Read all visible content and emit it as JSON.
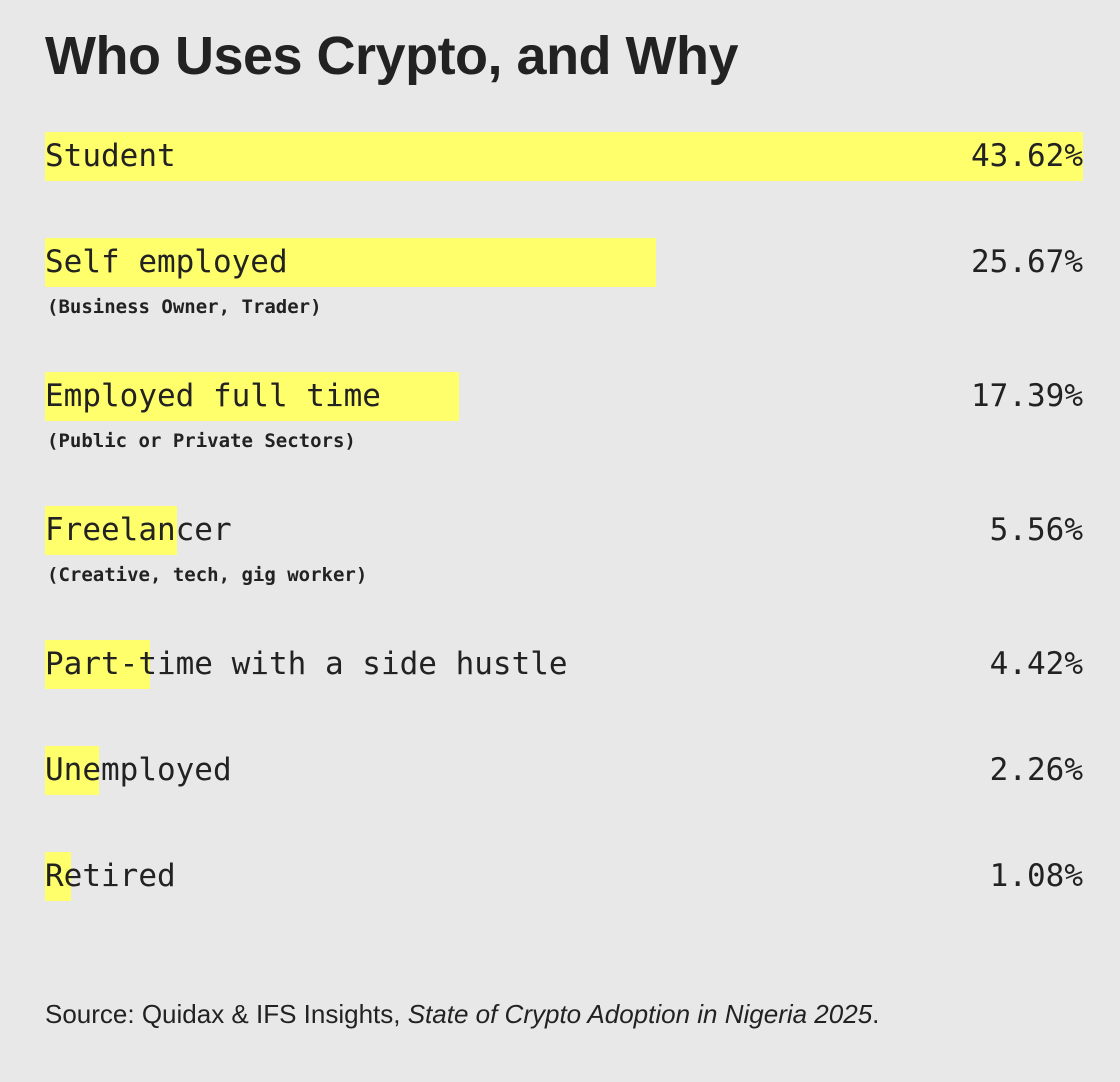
{
  "title": "Who Uses Crypto, and Why",
  "source": {
    "prefix": "Source: Quidax & IFS Insights, ",
    "italic": "State of Crypto Adoption in Nigeria 2025",
    "suffix": "."
  },
  "colors": {
    "background": "#e8e8e8",
    "bar": "#ffff6b",
    "text": "#222222"
  },
  "chart_data": {
    "type": "bar",
    "orientation": "horizontal",
    "title": "Who Uses Crypto, and Why",
    "categories": [
      "Student",
      "Self employed",
      "Employed full time",
      "Freelancer",
      "Part-time with a side hustle",
      "Unemployed",
      "Retired"
    ],
    "sublabels": [
      "",
      "(Business Owner, Trader)",
      "(Public or Private Sectors)",
      "(Creative, tech, gig worker)",
      "",
      "",
      ""
    ],
    "values": [
      43.62,
      25.67,
      17.39,
      5.56,
      4.42,
      2.26,
      1.08
    ],
    "value_labels": [
      "43.62%",
      "25.67%",
      "17.39%",
      "5.56%",
      "4.42%",
      "2.26%",
      "1.08%"
    ],
    "unit": "%",
    "xlim": [
      0,
      43.62
    ],
    "grid": false,
    "legend": "none"
  }
}
